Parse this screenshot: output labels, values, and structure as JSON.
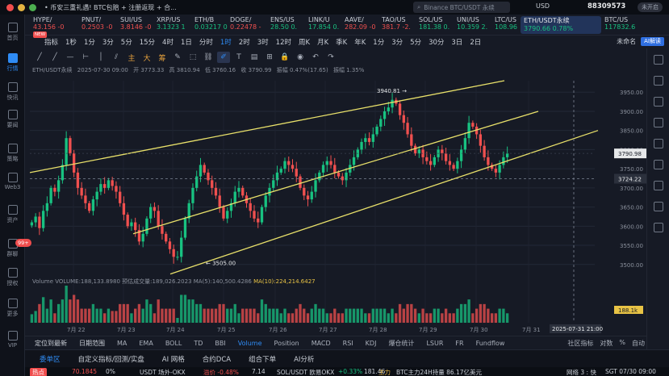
{
  "app": {
    "promo_text": "• 币安三重礼遇! BTC包赔 + 注册返现 + 合...",
    "search_placeholder": "Binance BTC/USDT 永续",
    "currency": "USD",
    "account_value": "88309573",
    "login_label": "未开启"
  },
  "sidebar": {
    "items": [
      {
        "label": "首页",
        "icon": "home-icon"
      },
      {
        "label": "行情",
        "icon": "market-icon",
        "active": true
      },
      {
        "label": "快讯",
        "icon": "flash-news-icon"
      },
      {
        "label": "要闻",
        "icon": "news-icon"
      },
      {
        "label": "策略",
        "icon": "strategy-icon"
      },
      {
        "label": "Web3",
        "icon": "web3-icon"
      },
      {
        "label": "资产",
        "icon": "wallet-icon"
      },
      {
        "label": "群聊",
        "icon": "chat-icon",
        "badge": "99+"
      },
      {
        "label": "授权",
        "icon": "authorize-icon"
      },
      {
        "label": "更多",
        "icon": "more-icon"
      },
      {
        "label": "VIP",
        "icon": "vip-icon"
      }
    ]
  },
  "tickers": [
    {
      "symbol": "HYPE/",
      "value": "43.156 -0",
      "dir": "down"
    },
    {
      "symbol": "PNUT/",
      "value": "0.2503 -0",
      "dir": "down"
    },
    {
      "symbol": "SUI/US",
      "value": "3.8146 -0",
      "dir": "down"
    },
    {
      "symbol": "XRP/US",
      "value": "3.1323 1",
      "dir": "up"
    },
    {
      "symbol": "ETH/B",
      "value": "0.03217 0",
      "dir": "up"
    },
    {
      "symbol": "DOGE/",
      "value": "0.22478 -",
      "dir": "down"
    },
    {
      "symbol": "ENS/US",
      "value": "28.50 0.",
      "dir": "up"
    },
    {
      "symbol": "LINK/U",
      "value": "17.854 0.",
      "dir": "up"
    },
    {
      "symbol": "AAVE/",
      "value": "282.09 -0",
      "dir": "down"
    },
    {
      "symbol": "TAO/US",
      "value": "381.7 -2.",
      "dir": "down"
    },
    {
      "symbol": "SOL/US",
      "value": "181.38 0.",
      "dir": "up"
    },
    {
      "symbol": "UNI/US",
      "value": "10.359 2.",
      "dir": "up"
    },
    {
      "symbol": "LTC/US",
      "value": "108.96 0.",
      "dir": "up"
    },
    {
      "symbol": "ETH/USDT永续",
      "value": "3790.66 0.78%",
      "dir": "up",
      "active": true
    },
    {
      "symbol": "BTC/US",
      "value": "117832.6",
      "dir": "up"
    }
  ],
  "toolbar": {
    "items": [
      "指标",
      "1秒",
      "1分",
      "3分",
      "5分",
      "15分",
      "4时",
      "1日",
      "分时",
      "1时",
      "2时",
      "3时",
      "12时",
      "周K",
      "月K",
      "季K",
      "年K",
      "1分",
      "3分",
      "5分",
      "30分",
      "3日",
      "2日"
    ],
    "active_index": 9,
    "new_badge": "NEW",
    "right_select": "未命名",
    "ai_label": "AI解读"
  },
  "drawing_tools": [
    {
      "icon": "trend-line-icon",
      "glyph": "╱"
    },
    {
      "icon": "ray-icon",
      "glyph": "╱"
    },
    {
      "icon": "horizontal-line-icon",
      "glyph": "—"
    },
    {
      "icon": "horizontal-ray-icon",
      "glyph": "⊢"
    },
    {
      "icon": "vertical-line-icon",
      "glyph": "│"
    },
    {
      "icon": "parallel-channel-icon",
      "glyph": "⫽"
    },
    {
      "icon": "main-wave-icon",
      "glyph": "主",
      "accent": true
    },
    {
      "icon": "big-wave-icon",
      "glyph": "大",
      "accent": true
    },
    {
      "icon": "chip-icon",
      "glyph": "筹",
      "accent": true
    },
    {
      "icon": "brush-icon",
      "glyph": "✎"
    },
    {
      "icon": "select-icon",
      "glyph": "⬚"
    },
    {
      "icon": "link-icon",
      "glyph": "⛓"
    },
    {
      "icon": "pen-icon",
      "glyph": "✐",
      "active": true
    },
    {
      "icon": "text-icon",
      "glyph": "T"
    },
    {
      "icon": "pattern-icon",
      "glyph": "▤"
    },
    {
      "icon": "measure-icon",
      "glyph": "⊞"
    },
    {
      "icon": "lock-icon",
      "glyph": "🔒"
    },
    {
      "icon": "eye-icon",
      "glyph": "◉"
    },
    {
      "icon": "undo-icon",
      "glyph": "↶"
    },
    {
      "icon": "redo-icon",
      "glyph": "↷"
    }
  ],
  "chart_legend": {
    "symbol": "ETH/USDT永续",
    "date": "2025-07-30 09:00",
    "open": "开 3773.33",
    "high": "高 3810.94",
    "low": "低 3760.16",
    "close": "收 3790.99",
    "change": "振幅 0.47%(17.65)",
    "amp": "振幅 1.35%"
  },
  "volume_legend": {
    "volume": "Volume  VOLUME:188,133.8980",
    "est": "预估成交量:189,026.2023",
    "ma5": "MA(5):140,500.4286",
    "ma10": "MA(10):224,214.6427"
  },
  "chart_data": {
    "type": "candlestick",
    "title": "",
    "x_tick_labels": [
      "7月 22",
      "7月 23",
      "7月 24",
      "7月 25",
      "7月 26",
      "7月 27",
      "7月 28",
      "7月 29",
      "7月 30",
      "7月 31"
    ],
    "y_tick_labels": [
      "3950.00",
      "3900.00",
      "3850.00",
      "3800.00",
      "3750.00",
      "3700.00",
      "3650.00",
      "3600.00",
      "3550.00",
      "3500.00"
    ],
    "ylim": [
      3470,
      3980
    ],
    "current_price_label": "3790.98",
    "crosshair_price_label": "3724.22",
    "crosshair_time_label": "2025-07-31 21:00",
    "volume_label": "188.1k",
    "annotations": [
      {
        "text": "3940.81",
        "kind": "high"
      },
      {
        "text": "3505.00",
        "kind": "low"
      }
    ],
    "closes": [
      3610,
      3625,
      3595,
      3640,
      3660,
      3700,
      3690,
      3720,
      3760,
      3830,
      3790,
      3740,
      3700,
      3680,
      3660,
      3640,
      3670,
      3690,
      3710,
      3700,
      3720,
      3705,
      3690,
      3660,
      3630,
      3600,
      3610,
      3590,
      3560,
      3580,
      3620,
      3650,
      3640,
      3600,
      3580,
      3560,
      3540,
      3520,
      3520,
      3570,
      3620,
      3660,
      3700,
      3730,
      3760,
      3740,
      3720,
      3700,
      3680,
      3650,
      3620,
      3640,
      3660,
      3690,
      3700,
      3680,
      3660,
      3640,
      3620,
      3610,
      3650,
      3680,
      3700,
      3720,
      3740,
      3750,
      3770,
      3760,
      3750,
      3730,
      3700,
      3680,
      3670,
      3690,
      3720,
      3740,
      3760,
      3770,
      3760,
      3740,
      3730,
      3720,
      3740,
      3760,
      3780,
      3800,
      3820,
      3830,
      3820,
      3840,
      3860,
      3880,
      3900,
      3910,
      3930,
      3920,
      3890,
      3870,
      3840,
      3810,
      3790,
      3800,
      3780,
      3770,
      3760,
      3780,
      3800,
      3790,
      3770,
      3760,
      3750,
      3770,
      3800,
      3830,
      3870,
      3860,
      3840,
      3810,
      3780,
      3760,
      3750,
      3740,
      3760,
      3780,
      3790
    ]
  },
  "indicators": {
    "range_label": "定位到最新",
    "date_range_label": "日期范围",
    "items": [
      "MA",
      "EMA",
      "BOLL",
      "TD",
      "BBI",
      "Volume",
      "Position",
      "MACD",
      "RSI",
      "KDJ",
      "爆仓统计",
      "LSUR",
      "FR",
      "Fundflow"
    ],
    "active": "Volume",
    "right": [
      "社区指标",
      "对数",
      "%",
      "自动"
    ]
  },
  "bottom_tabs": [
    "委单区",
    "自定义指标/回测/实盘",
    "AI 网格",
    "合约DCA",
    "组合下单",
    "AI分析"
  ],
  "status": {
    "tag": "热点",
    "price1": "70.1845",
    "chg1": "0%",
    "pair2": "USDT 场外-OKX",
    "chg2": "溢价 -0.48%",
    "val2": "7.14",
    "pair3": "SOL/USDT 欧易OKX",
    "chg3": "+0.33%",
    "val3": "181.46",
    "pair4": "BTC主力24H持量 86.17亿美元",
    "tag2": "主力",
    "speed": "网络 3 : 快",
    "time": "SGT 07/30 09:00"
  }
}
